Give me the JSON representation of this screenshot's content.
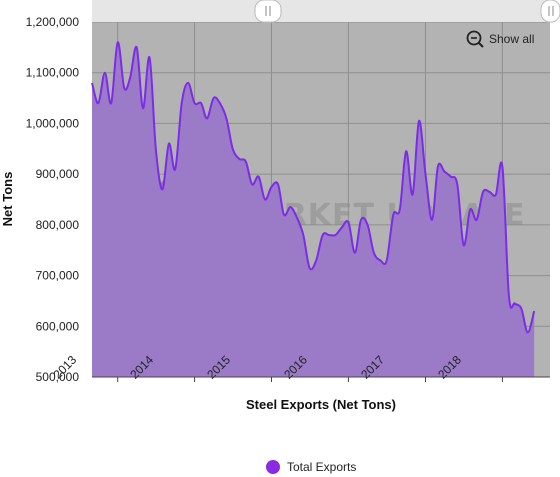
{
  "chart_data": {
    "type": "area",
    "title": "",
    "xlabel": "Steel Exports (Net Tons)",
    "ylabel": "Net Tons",
    "ylim": [
      500000,
      1200000
    ],
    "yticks": [
      500000,
      600000,
      700000,
      800000,
      900000,
      1000000,
      1100000,
      1200000
    ],
    "ytick_labels": [
      "500,000",
      "600,000",
      "700,000",
      "800,000",
      "900,000",
      "1,000,000",
      "1,100,000",
      "1,200,000"
    ],
    "xlim": [
      "2012-09-01",
      "2018-08-15"
    ],
    "xtick_labels": [
      "2013",
      "2014",
      "2015",
      "2016",
      "2017",
      "2018"
    ],
    "xtick_dates": [
      "2013-01-01",
      "2014-01-01",
      "2015-01-01",
      "2016-01-01",
      "2017-01-01",
      "2018-01-01"
    ],
    "grid": true,
    "legend_position": "bottom-center",
    "series": [
      {
        "name": "Total Exports",
        "color": "#7c2ce8",
        "fill": "#9b7ac7",
        "points": [
          [
            "2012-09-01",
            1080000
          ],
          [
            "2012-10-01",
            1040000
          ],
          [
            "2012-11-01",
            1100000
          ],
          [
            "2012-12-01",
            1040000
          ],
          [
            "2013-01-01",
            1160000
          ],
          [
            "2013-02-01",
            1070000
          ],
          [
            "2013-03-01",
            1090000
          ],
          [
            "2013-04-01",
            1150000
          ],
          [
            "2013-05-01",
            1030000
          ],
          [
            "2013-06-01",
            1130000
          ],
          [
            "2013-07-01",
            950000
          ],
          [
            "2013-08-01",
            870000
          ],
          [
            "2013-09-01",
            960000
          ],
          [
            "2013-10-01",
            910000
          ],
          [
            "2013-11-01",
            1040000
          ],
          [
            "2013-12-01",
            1080000
          ],
          [
            "2014-01-01",
            1040000
          ],
          [
            "2014-02-01",
            1040000
          ],
          [
            "2014-03-01",
            1010000
          ],
          [
            "2014-04-01",
            1050000
          ],
          [
            "2014-05-01",
            1040000
          ],
          [
            "2014-06-01",
            1010000
          ],
          [
            "2014-07-01",
            950000
          ],
          [
            "2014-08-01",
            930000
          ],
          [
            "2014-09-01",
            925000
          ],
          [
            "2014-10-01",
            880000
          ],
          [
            "2014-11-01",
            895000
          ],
          [
            "2014-12-01",
            850000
          ],
          [
            "2015-01-01",
            875000
          ],
          [
            "2015-02-01",
            880000
          ],
          [
            "2015-03-01",
            820000
          ],
          [
            "2015-04-01",
            835000
          ],
          [
            "2015-05-01",
            815000
          ],
          [
            "2015-06-01",
            780000
          ],
          [
            "2015-07-01",
            715000
          ],
          [
            "2015-08-01",
            730000
          ],
          [
            "2015-09-01",
            780000
          ],
          [
            "2015-10-01",
            780000
          ],
          [
            "2015-11-01",
            780000
          ],
          [
            "2015-12-01",
            795000
          ],
          [
            "2016-01-01",
            805000
          ],
          [
            "2016-02-01",
            745000
          ],
          [
            "2016-03-01",
            810000
          ],
          [
            "2016-04-01",
            800000
          ],
          [
            "2016-05-01",
            745000
          ],
          [
            "2016-06-01",
            730000
          ],
          [
            "2016-07-01",
            730000
          ],
          [
            "2016-08-01",
            820000
          ],
          [
            "2016-09-01",
            830000
          ],
          [
            "2016-10-01",
            945000
          ],
          [
            "2016-11-01",
            860000
          ],
          [
            "2016-12-01",
            1005000
          ],
          [
            "2017-01-01",
            900000
          ],
          [
            "2017-02-01",
            810000
          ],
          [
            "2017-03-01",
            915000
          ],
          [
            "2017-04-01",
            905000
          ],
          [
            "2017-05-01",
            895000
          ],
          [
            "2017-06-01",
            880000
          ],
          [
            "2017-07-01",
            760000
          ],
          [
            "2017-08-01",
            830000
          ],
          [
            "2017-09-01",
            810000
          ],
          [
            "2017-10-01",
            865000
          ],
          [
            "2017-11-01",
            865000
          ],
          [
            "2017-12-01",
            860000
          ],
          [
            "2018-01-01",
            915000
          ],
          [
            "2018-02-01",
            660000
          ],
          [
            "2018-03-01",
            645000
          ],
          [
            "2018-04-01",
            635000
          ],
          [
            "2018-05-01",
            588000
          ],
          [
            "2018-06-01",
            630000
          ]
        ]
      }
    ],
    "watermark": "STEEL MARKET UPDATE"
  },
  "controls": {
    "show_all_label": "Show all"
  },
  "colors": {
    "plot_bg": "#b3b3b3",
    "grid": "#8f8f8f",
    "line": "#7c2ce8",
    "area": "#9b7ac7",
    "legend_marker": "#8a2be2"
  },
  "icons": {
    "zoom": "zoom-out-icon",
    "handle": "scrollbar-grip-icon",
    "legend": "legend-circle-icon"
  }
}
